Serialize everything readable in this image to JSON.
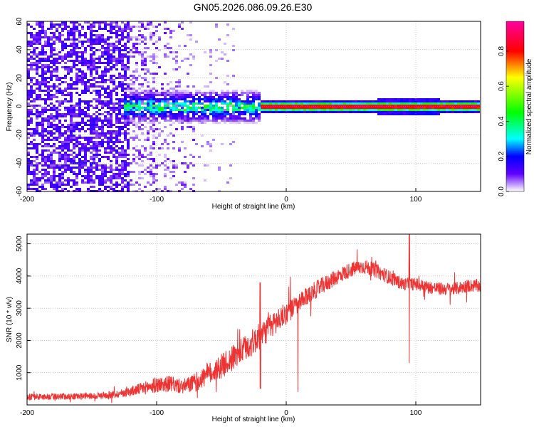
{
  "title": "GN05.2026.086.09.26.E30",
  "chart_data": [
    {
      "type": "heatmap",
      "name": "spectrogram",
      "xlabel": "Height of straight line (km)",
      "ylabel": "Frequency (Hz)",
      "xlim": [
        -200,
        150
      ],
      "ylim": [
        -60,
        60
      ],
      "xticks": [
        -200,
        -100,
        0,
        100
      ],
      "yticks": [
        -60,
        -40,
        -20,
        0,
        20,
        40,
        60
      ],
      "grid": true,
      "colorbar": {
        "label": "Normalized spectral amplitude",
        "range": [
          0,
          0.97
        ],
        "ticks": [
          0.0,
          0.2,
          0.4,
          0.6,
          0.8
        ],
        "colors": [
          "#ffffff",
          "#6000ff",
          "#0000ff",
          "#00ffff",
          "#00ff00",
          "#ffff00",
          "#ff0000",
          "#ff00a0"
        ]
      },
      "colormap_stops": [
        0.0,
        0.1,
        0.2,
        0.3,
        0.45,
        0.65,
        0.8,
        0.97
      ],
      "regions": [
        {
          "x_range": [
            -200,
            -120
          ],
          "freq_half_width": 60,
          "amplitude": 0.08,
          "note": "broadband noise"
        },
        {
          "x_range": [
            -120,
            -70
          ],
          "freq_half_width": 60,
          "amplitude": 0.03,
          "note": "sparse noise"
        },
        {
          "x_range": [
            -120,
            -20
          ],
          "freq_half_width": 10,
          "amplitude": 0.35,
          "note": "emerging signal"
        },
        {
          "x_range": [
            -20,
            150
          ],
          "freq_half_width": 4,
          "amplitude": 0.85,
          "note": "strong carrier near 0 Hz"
        }
      ]
    },
    {
      "type": "line",
      "name": "snr",
      "xlabel": "Height of straight line (km)",
      "ylabel": "SNR (10 * v/v)",
      "xlim": [
        -200,
        150
      ],
      "ylim": [
        0,
        5300
      ],
      "xticks": [
        -200,
        -100,
        0,
        100
      ],
      "yticks": [
        1000,
        2000,
        3000,
        4000,
        5000
      ],
      "grid": true,
      "color": "#ee3333",
      "x": [
        -200,
        -190,
        -180,
        -170,
        -160,
        -150,
        -140,
        -130,
        -120,
        -110,
        -100,
        -90,
        -80,
        -70,
        -60,
        -50,
        -40,
        -30,
        -20,
        -10,
        0,
        10,
        20,
        30,
        40,
        50,
        60,
        70,
        80,
        90,
        100,
        110,
        120,
        130,
        140,
        150
      ],
      "values": [
        250,
        250,
        260,
        260,
        270,
        280,
        300,
        340,
        420,
        520,
        620,
        660,
        560,
        700,
        950,
        1200,
        1500,
        1800,
        2150,
        2500,
        2850,
        3150,
        3500,
        3750,
        4000,
        4200,
        4300,
        4150,
        3950,
        3750,
        3750,
        3650,
        3600,
        3600,
        3700,
        3700
      ],
      "noise": [
        100,
        100,
        100,
        100,
        100,
        100,
        110,
        120,
        150,
        200,
        250,
        250,
        230,
        300,
        350,
        380,
        400,
        420,
        420,
        400,
        350,
        300,
        280,
        260,
        250,
        240,
        230,
        230,
        220,
        200,
        200,
        200,
        200,
        200,
        200,
        200
      ],
      "annotations": [
        {
          "x": 95,
          "min": 1300,
          "max": 5300,
          "note": "sharp spike"
        },
        {
          "x": 9,
          "min": 400,
          "max": 3200,
          "note": "dropout"
        },
        {
          "x": -20,
          "min": 500,
          "max": 3800,
          "note": "dropout"
        }
      ]
    }
  ]
}
